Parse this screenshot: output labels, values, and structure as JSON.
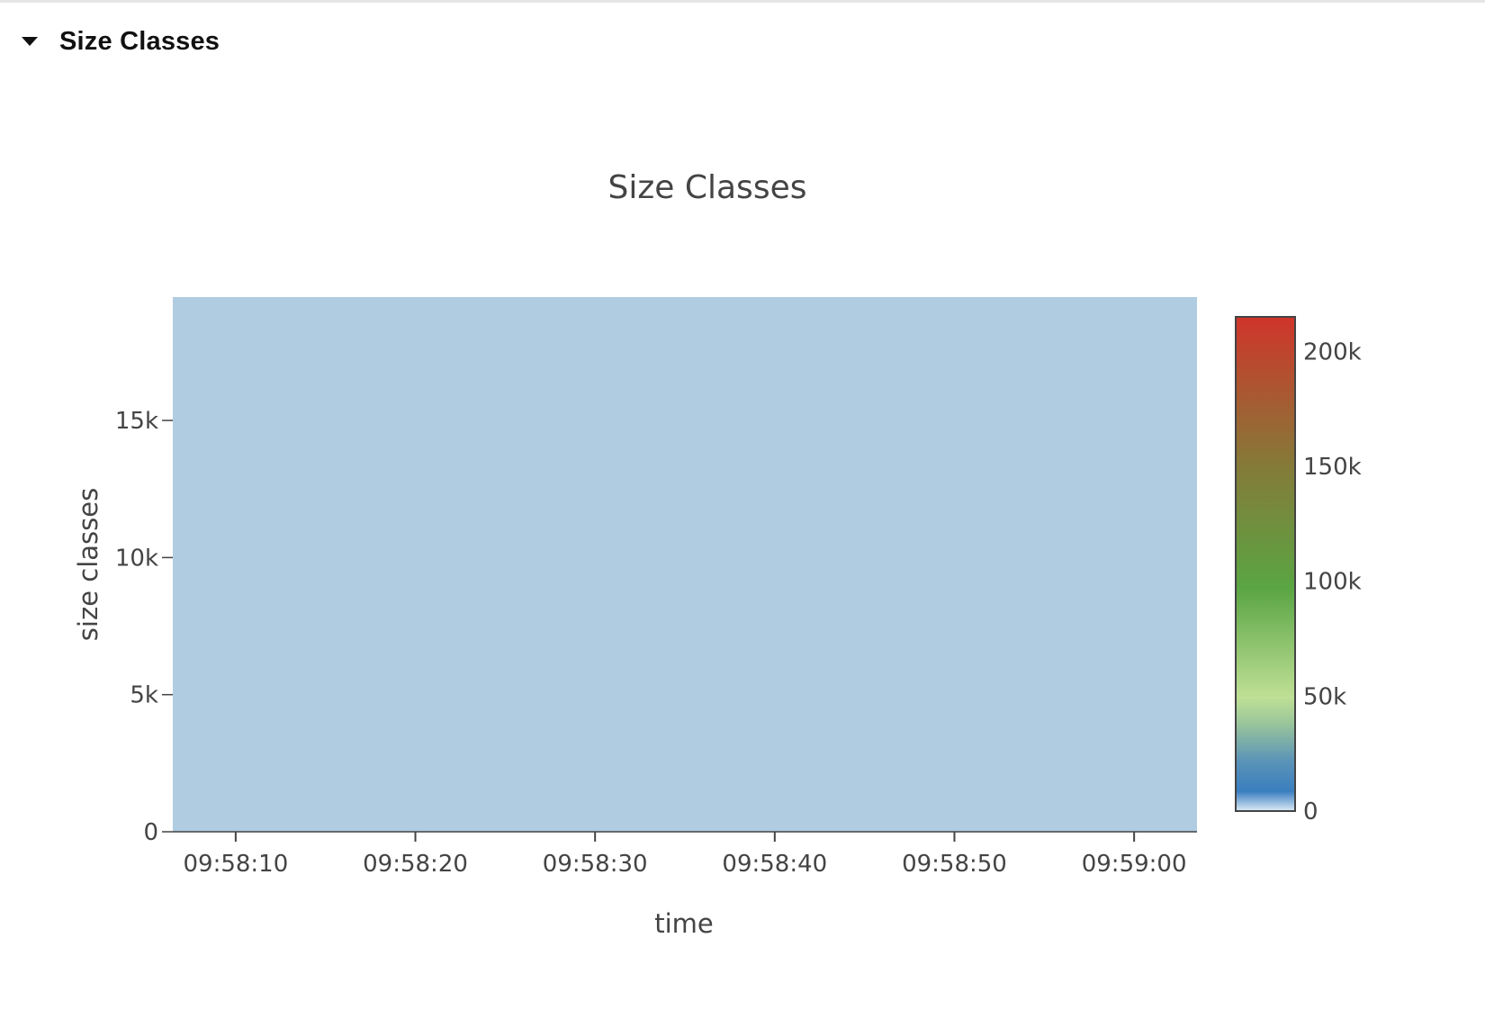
{
  "section": {
    "title": "Size Classes",
    "toggle_icon": "caret-down-icon"
  },
  "chart_data": {
    "type": "heatmap",
    "title": "Size Classes",
    "xlabel": "time",
    "ylabel": "size classes",
    "x_ticks": [
      "09:58:10",
      "09:58:20",
      "09:58:30",
      "09:58:40",
      "09:58:50",
      "09:59:00"
    ],
    "x_range": [
      "09:58:06.5",
      "09:59:03.5"
    ],
    "y_ticks": [
      0,
      5000,
      10000,
      15000
    ],
    "y_tick_labels": [
      "0",
      "5k",
      "10k",
      "15k"
    ],
    "ylim": [
      0,
      19500
    ],
    "fill_value": 0,
    "fill_color": "#afcce1",
    "colorbar": {
      "range": [
        0,
        215000
      ],
      "ticks": [
        0,
        50000,
        100000,
        150000,
        200000
      ],
      "tick_labels": [
        "0",
        "50k",
        "100k",
        "150k",
        "200k"
      ],
      "colorscale": [
        [
          0.0,
          "#dceaf7"
        ],
        [
          0.04,
          "#3a7ebf"
        ],
        [
          0.1,
          "#5a93b8"
        ],
        [
          0.18,
          "#9cc79a"
        ],
        [
          0.23,
          "#bfe095"
        ],
        [
          0.45,
          "#5aa544"
        ],
        [
          0.7,
          "#857a38"
        ],
        [
          1.0,
          "#d0342a"
        ]
      ]
    }
  }
}
